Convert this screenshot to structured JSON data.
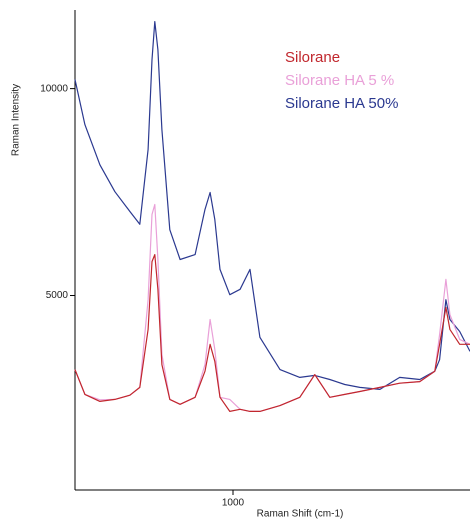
{
  "chart_data": {
    "type": "line",
    "xlabel": "Raman Shift (cm-1)",
    "ylabel": "Raman Intensity",
    "x": [
      600,
      625,
      663,
      701,
      739,
      764,
      785,
      795,
      802,
      810,
      820,
      840,
      866,
      904,
      929,
      942,
      954,
      967,
      992,
      1018,
      1043,
      1068,
      1119,
      1169,
      1207,
      1245,
      1283,
      1321,
      1372,
      1422,
      1473,
      1511,
      1523,
      1539,
      1549,
      1574,
      1600
    ],
    "series": [
      {
        "name": "Silorane",
        "color": "#c1272d",
        "values": [
          3210,
          2610,
          2440,
          2490,
          2590,
          2780,
          4180,
          5820,
          5990,
          5150,
          3330,
          2490,
          2370,
          2540,
          3170,
          3820,
          3410,
          2540,
          2200,
          2250,
          2200,
          2200,
          2340,
          2540,
          3090,
          2540,
          2610,
          2680,
          2780,
          2880,
          2920,
          3170,
          3820,
          4710,
          4180,
          3820,
          3820
        ]
      },
      {
        "name": "Silorane HA 5  %",
        "color": "#e9a0d8",
        "values": [
          3210,
          2610,
          2480,
          2490,
          2590,
          2780,
          4900,
          6960,
          7200,
          5870,
          3580,
          2490,
          2370,
          2540,
          3330,
          4420,
          3700,
          2540,
          2490,
          2250,
          2200,
          2200,
          2340,
          2540,
          3090,
          2540,
          2610,
          2680,
          2780,
          2880,
          2920,
          3170,
          4060,
          5390,
          4540,
          3940,
          3820
        ]
      },
      {
        "name": "Silorane HA 50%",
        "color": "#2b3990",
        "values": [
          10220,
          9130,
          8160,
          7510,
          7030,
          6720,
          8530,
          10700,
          11620,
          10940,
          9010,
          6590,
          5870,
          5990,
          7080,
          7490,
          6840,
          5630,
          5020,
          5150,
          5630,
          3990,
          3210,
          3020,
          3070,
          2970,
          2850,
          2780,
          2730,
          3020,
          2970,
          3170,
          3450,
          4900,
          4420,
          4130,
          3650
        ]
      }
    ],
    "xlim": [
      600,
      1600
    ],
    "ylim": [
      300,
      11900
    ],
    "xticks": [
      1000
    ],
    "yticks": [
      5000,
      10000
    ]
  }
}
